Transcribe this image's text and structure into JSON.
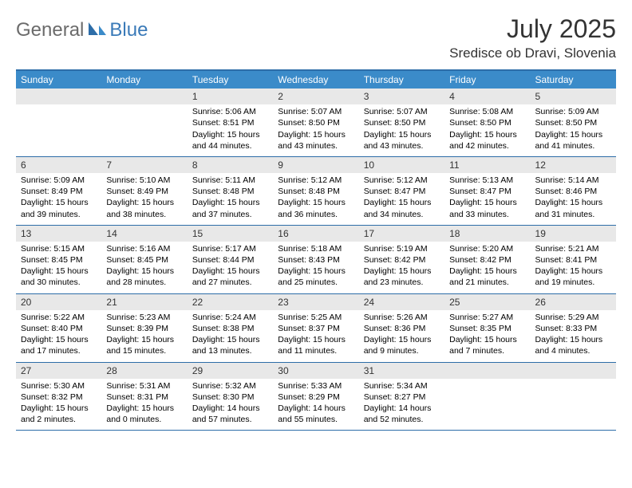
{
  "logo": {
    "text_general": "General",
    "text_blue": "Blue"
  },
  "title": {
    "month": "July 2025",
    "location": "Sredisce ob Dravi, Slovenia"
  },
  "colors": {
    "header_bg": "#3b8bc9",
    "header_border": "#2d6da8",
    "daynum_bg": "#e8e8e8",
    "text": "#000000",
    "logo_gray": "#6b6b6b",
    "logo_blue": "#3a7ab8"
  },
  "day_headers": [
    "Sunday",
    "Monday",
    "Tuesday",
    "Wednesday",
    "Thursday",
    "Friday",
    "Saturday"
  ],
  "weeks": [
    [
      {
        "n": "",
        "sunrise": "",
        "sunset": "",
        "daylight": ""
      },
      {
        "n": "",
        "sunrise": "",
        "sunset": "",
        "daylight": ""
      },
      {
        "n": "1",
        "sunrise": "Sunrise: 5:06 AM",
        "sunset": "Sunset: 8:51 PM",
        "daylight": "Daylight: 15 hours and 44 minutes."
      },
      {
        "n": "2",
        "sunrise": "Sunrise: 5:07 AM",
        "sunset": "Sunset: 8:50 PM",
        "daylight": "Daylight: 15 hours and 43 minutes."
      },
      {
        "n": "3",
        "sunrise": "Sunrise: 5:07 AM",
        "sunset": "Sunset: 8:50 PM",
        "daylight": "Daylight: 15 hours and 43 minutes."
      },
      {
        "n": "4",
        "sunrise": "Sunrise: 5:08 AM",
        "sunset": "Sunset: 8:50 PM",
        "daylight": "Daylight: 15 hours and 42 minutes."
      },
      {
        "n": "5",
        "sunrise": "Sunrise: 5:09 AM",
        "sunset": "Sunset: 8:50 PM",
        "daylight": "Daylight: 15 hours and 41 minutes."
      }
    ],
    [
      {
        "n": "6",
        "sunrise": "Sunrise: 5:09 AM",
        "sunset": "Sunset: 8:49 PM",
        "daylight": "Daylight: 15 hours and 39 minutes."
      },
      {
        "n": "7",
        "sunrise": "Sunrise: 5:10 AM",
        "sunset": "Sunset: 8:49 PM",
        "daylight": "Daylight: 15 hours and 38 minutes."
      },
      {
        "n": "8",
        "sunrise": "Sunrise: 5:11 AM",
        "sunset": "Sunset: 8:48 PM",
        "daylight": "Daylight: 15 hours and 37 minutes."
      },
      {
        "n": "9",
        "sunrise": "Sunrise: 5:12 AM",
        "sunset": "Sunset: 8:48 PM",
        "daylight": "Daylight: 15 hours and 36 minutes."
      },
      {
        "n": "10",
        "sunrise": "Sunrise: 5:12 AM",
        "sunset": "Sunset: 8:47 PM",
        "daylight": "Daylight: 15 hours and 34 minutes."
      },
      {
        "n": "11",
        "sunrise": "Sunrise: 5:13 AM",
        "sunset": "Sunset: 8:47 PM",
        "daylight": "Daylight: 15 hours and 33 minutes."
      },
      {
        "n": "12",
        "sunrise": "Sunrise: 5:14 AM",
        "sunset": "Sunset: 8:46 PM",
        "daylight": "Daylight: 15 hours and 31 minutes."
      }
    ],
    [
      {
        "n": "13",
        "sunrise": "Sunrise: 5:15 AM",
        "sunset": "Sunset: 8:45 PM",
        "daylight": "Daylight: 15 hours and 30 minutes."
      },
      {
        "n": "14",
        "sunrise": "Sunrise: 5:16 AM",
        "sunset": "Sunset: 8:45 PM",
        "daylight": "Daylight: 15 hours and 28 minutes."
      },
      {
        "n": "15",
        "sunrise": "Sunrise: 5:17 AM",
        "sunset": "Sunset: 8:44 PM",
        "daylight": "Daylight: 15 hours and 27 minutes."
      },
      {
        "n": "16",
        "sunrise": "Sunrise: 5:18 AM",
        "sunset": "Sunset: 8:43 PM",
        "daylight": "Daylight: 15 hours and 25 minutes."
      },
      {
        "n": "17",
        "sunrise": "Sunrise: 5:19 AM",
        "sunset": "Sunset: 8:42 PM",
        "daylight": "Daylight: 15 hours and 23 minutes."
      },
      {
        "n": "18",
        "sunrise": "Sunrise: 5:20 AM",
        "sunset": "Sunset: 8:42 PM",
        "daylight": "Daylight: 15 hours and 21 minutes."
      },
      {
        "n": "19",
        "sunrise": "Sunrise: 5:21 AM",
        "sunset": "Sunset: 8:41 PM",
        "daylight": "Daylight: 15 hours and 19 minutes."
      }
    ],
    [
      {
        "n": "20",
        "sunrise": "Sunrise: 5:22 AM",
        "sunset": "Sunset: 8:40 PM",
        "daylight": "Daylight: 15 hours and 17 minutes."
      },
      {
        "n": "21",
        "sunrise": "Sunrise: 5:23 AM",
        "sunset": "Sunset: 8:39 PM",
        "daylight": "Daylight: 15 hours and 15 minutes."
      },
      {
        "n": "22",
        "sunrise": "Sunrise: 5:24 AM",
        "sunset": "Sunset: 8:38 PM",
        "daylight": "Daylight: 15 hours and 13 minutes."
      },
      {
        "n": "23",
        "sunrise": "Sunrise: 5:25 AM",
        "sunset": "Sunset: 8:37 PM",
        "daylight": "Daylight: 15 hours and 11 minutes."
      },
      {
        "n": "24",
        "sunrise": "Sunrise: 5:26 AM",
        "sunset": "Sunset: 8:36 PM",
        "daylight": "Daylight: 15 hours and 9 minutes."
      },
      {
        "n": "25",
        "sunrise": "Sunrise: 5:27 AM",
        "sunset": "Sunset: 8:35 PM",
        "daylight": "Daylight: 15 hours and 7 minutes."
      },
      {
        "n": "26",
        "sunrise": "Sunrise: 5:29 AM",
        "sunset": "Sunset: 8:33 PM",
        "daylight": "Daylight: 15 hours and 4 minutes."
      }
    ],
    [
      {
        "n": "27",
        "sunrise": "Sunrise: 5:30 AM",
        "sunset": "Sunset: 8:32 PM",
        "daylight": "Daylight: 15 hours and 2 minutes."
      },
      {
        "n": "28",
        "sunrise": "Sunrise: 5:31 AM",
        "sunset": "Sunset: 8:31 PM",
        "daylight": "Daylight: 15 hours and 0 minutes."
      },
      {
        "n": "29",
        "sunrise": "Sunrise: 5:32 AM",
        "sunset": "Sunset: 8:30 PM",
        "daylight": "Daylight: 14 hours and 57 minutes."
      },
      {
        "n": "30",
        "sunrise": "Sunrise: 5:33 AM",
        "sunset": "Sunset: 8:29 PM",
        "daylight": "Daylight: 14 hours and 55 minutes."
      },
      {
        "n": "31",
        "sunrise": "Sunrise: 5:34 AM",
        "sunset": "Sunset: 8:27 PM",
        "daylight": "Daylight: 14 hours and 52 minutes."
      },
      {
        "n": "",
        "sunrise": "",
        "sunset": "",
        "daylight": ""
      },
      {
        "n": "",
        "sunrise": "",
        "sunset": "",
        "daylight": ""
      }
    ]
  ]
}
